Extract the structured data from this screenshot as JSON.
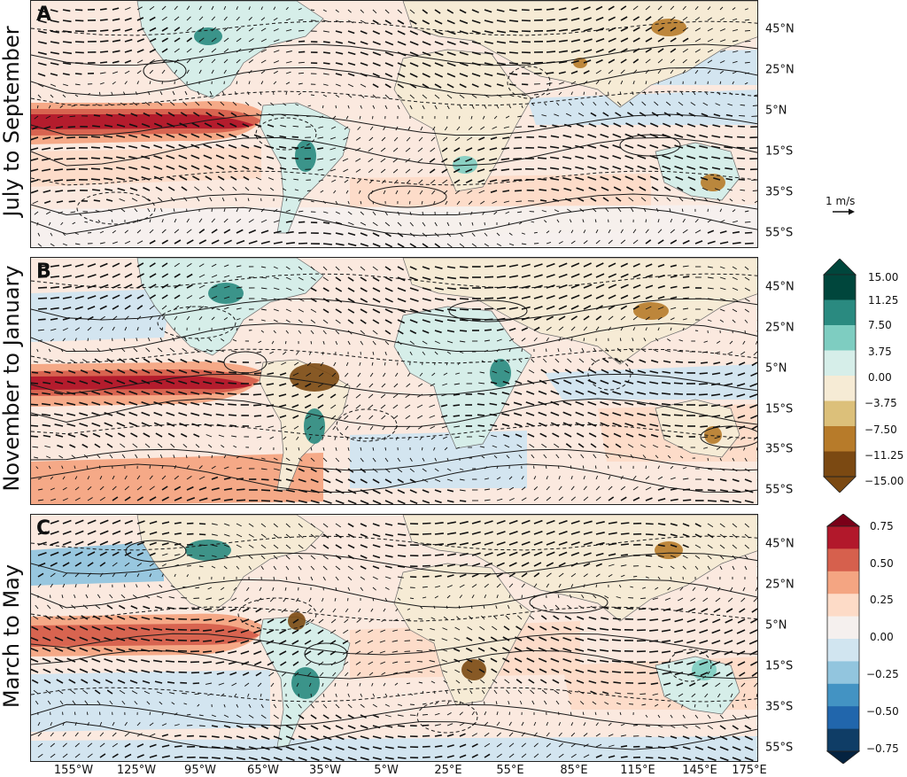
{
  "panels": [
    {
      "letter": "A",
      "label": "July to September"
    },
    {
      "letter": "B",
      "label": "November to January"
    },
    {
      "letter": "C",
      "label": "March to May"
    }
  ],
  "lat_labels": [
    "45°N",
    "25°N",
    "5°N",
    "15°S",
    "35°S",
    "55°S"
  ],
  "lon_labels": [
    "155°W",
    "125°W",
    "95°W",
    "65°W",
    "35°W",
    "5°W",
    "25°E",
    "55°E",
    "85°E",
    "115°E",
    "145°E",
    "175°E"
  ],
  "wind_reference": "1 m/s",
  "precip_colorbar": {
    "ticks": [
      "15.00",
      "11.25",
      "7.50",
      "3.75",
      "0.00",
      "−3.75",
      "−7.50",
      "−11.25",
      "−15.00"
    ],
    "colors": [
      "#00463c",
      "#2a8a80",
      "#7ecdc1",
      "#d6eee9",
      "#f6ebd5",
      "#dcc07a",
      "#b77b2a",
      "#7b4912"
    ]
  },
  "sst_colorbar": {
    "ticks": [
      "0.75",
      "0.50",
      "0.25",
      "0.00",
      "−0.25",
      "−0.50",
      "−0.75"
    ],
    "colors": [
      "#7a0018",
      "#b2182b",
      "#d6604d",
      "#f4a582",
      "#fddbc7",
      "#f5f0ee",
      "#d1e5f0",
      "#92c5de",
      "#4393c3",
      "#2166ac",
      "#0f3d66",
      "#052340"
    ]
  }
}
